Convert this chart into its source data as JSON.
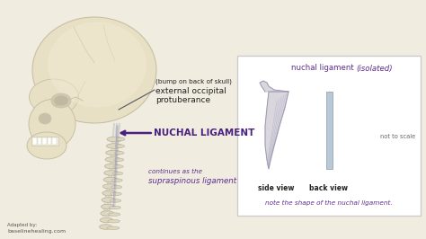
{
  "bg_color": "#f0ece0",
  "skull_base": "#e8e0c4",
  "skull_dark": "#c8c0a4",
  "skull_light": "#f0ead4",
  "spine_color": "#ddd8c0",
  "spine_edge": "#b8b098",
  "ligament_color": "#a0a8b8",
  "nuchal_label_color": "#4a2080",
  "text_dark": "#222222",
  "text_purple": "#5c2d8c",
  "text_gray": "#666666",
  "box_bg": "#ffffff",
  "box_border": "#cccccc",
  "shape_fill": "#c0bcc8",
  "shape_edge": "#9090a8",
  "back_view_fill": "#b8c8d4",
  "back_view_edge": "#8898a8",
  "arrow_color": "#4a2080",
  "pointer_color": "#555566",
  "nuchal_ligament_label": "NUCHAL LIGAMENT",
  "ext_occipital_line1": "(bump on back of skull)",
  "ext_occipital_line2": "external occipital",
  "ext_occipital_line3": "protuberance",
  "continues_line1": "continues as the",
  "continues_line2": "supraspinous ligament",
  "box_title1": "nuchal ligament ",
  "box_title2": "(isolated)",
  "side_view_label": "side view",
  "back_view_label": "back view",
  "not_to_scale": "not to scale",
  "note_label": "note the shape of the nuchal ligament.",
  "adapted_line1": "Adapted by:",
  "adapted_line2": "baselinehealing.com"
}
